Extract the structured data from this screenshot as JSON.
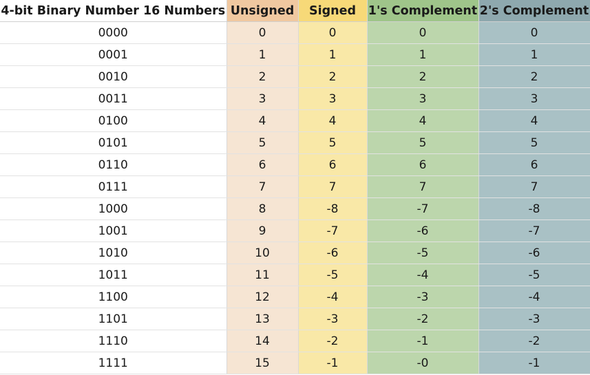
{
  "headers": {
    "binary": "4-bit Binary Number 16 Numbers",
    "unsigned": "Unsigned",
    "signed": "Signed",
    "ones": "1's Complement",
    "twos": "2's Complement"
  },
  "rows": [
    {
      "binary": "0000",
      "unsigned": "0",
      "signed": "0",
      "ones": "0",
      "twos": "0"
    },
    {
      "binary": "0001",
      "unsigned": "1",
      "signed": "1",
      "ones": "1",
      "twos": "1"
    },
    {
      "binary": "0010",
      "unsigned": "2",
      "signed": "2",
      "ones": "2",
      "twos": "2"
    },
    {
      "binary": "0011",
      "unsigned": "3",
      "signed": "3",
      "ones": "3",
      "twos": "3"
    },
    {
      "binary": "0100",
      "unsigned": "4",
      "signed": "4",
      "ones": "4",
      "twos": "4"
    },
    {
      "binary": "0101",
      "unsigned": "5",
      "signed": "5",
      "ones": "5",
      "twos": "5"
    },
    {
      "binary": "0110",
      "unsigned": "6",
      "signed": "6",
      "ones": "6",
      "twos": "6"
    },
    {
      "binary": "0111",
      "unsigned": "7",
      "signed": "7",
      "ones": "7",
      "twos": "7"
    },
    {
      "binary": "1000",
      "unsigned": "8",
      "signed": "-8",
      "ones": "-7",
      "twos": "-8"
    },
    {
      "binary": "1001",
      "unsigned": "9",
      "signed": "-7",
      "ones": "-6",
      "twos": "-7"
    },
    {
      "binary": "1010",
      "unsigned": "10",
      "signed": "-6",
      "ones": "-5",
      "twos": "-6"
    },
    {
      "binary": "1011",
      "unsigned": "11",
      "signed": "-5",
      "ones": "-4",
      "twos": "-5"
    },
    {
      "binary": "1100",
      "unsigned": "12",
      "signed": "-4",
      "ones": "-3",
      "twos": "-4"
    },
    {
      "binary": "1101",
      "unsigned": "13",
      "signed": "-3",
      "ones": "-2",
      "twos": "-3"
    },
    {
      "binary": "1110",
      "unsigned": "14",
      "signed": "-2",
      "ones": "-1",
      "twos": "-2"
    },
    {
      "binary": "1111",
      "unsigned": "15",
      "signed": "-1",
      "ones": "-0",
      "twos": "-1"
    }
  ],
  "colors": {
    "unsigned_header": "#f0c8a0",
    "unsigned_cell": "#f6e5d3",
    "signed_header": "#f7d978",
    "signed_cell": "#f9e8a7",
    "ones_header": "#9fc58a",
    "ones_cell": "#bcd6ac",
    "twos_header": "#8ea8ae",
    "twos_cell": "#a9c1c5"
  }
}
